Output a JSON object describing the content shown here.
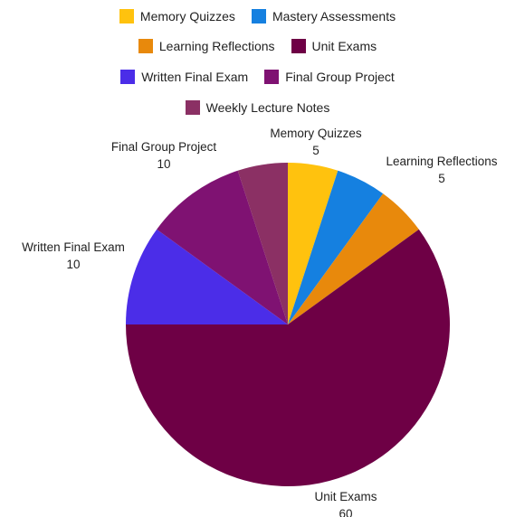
{
  "chart_data": {
    "type": "pie",
    "title": "",
    "start_angle": "12 o'clock, clockwise",
    "legend_position": "top",
    "series": [
      {
        "name": "Memory Quizzes",
        "value": 5,
        "color": "#FFC20E"
      },
      {
        "name": "Mastery Assessments",
        "value": 5,
        "color": "#1580E0"
      },
      {
        "name": "Learning Reflections",
        "value": 5,
        "color": "#E8890C"
      },
      {
        "name": "Unit Exams",
        "value": 60,
        "color": "#6E0045"
      },
      {
        "name": "Written Final Exam",
        "value": 10,
        "color": "#4B2DE8"
      },
      {
        "name": "Final Group Project",
        "value": 10,
        "color": "#7F1272"
      },
      {
        "name": "Weekly Lecture Notes",
        "value": 5,
        "color": "#8B3064"
      }
    ],
    "legend_rows": [
      [
        "Memory Quizzes",
        "Mastery Assessments"
      ],
      [
        "Learning Reflections",
        "Unit Exams"
      ],
      [
        "Written Final Exam",
        "Final Group Project"
      ],
      [
        "Weekly Lecture Notes"
      ]
    ],
    "data_labels": [
      {
        "name": "Memory Quizzes",
        "value": "5"
      },
      {
        "name": "Learning Reflections",
        "value": "5"
      },
      {
        "name": "Unit Exams",
        "value": "60"
      },
      {
        "name": "Written Final Exam",
        "value": "10"
      },
      {
        "name": "Final Group Project",
        "value": "10"
      }
    ]
  }
}
